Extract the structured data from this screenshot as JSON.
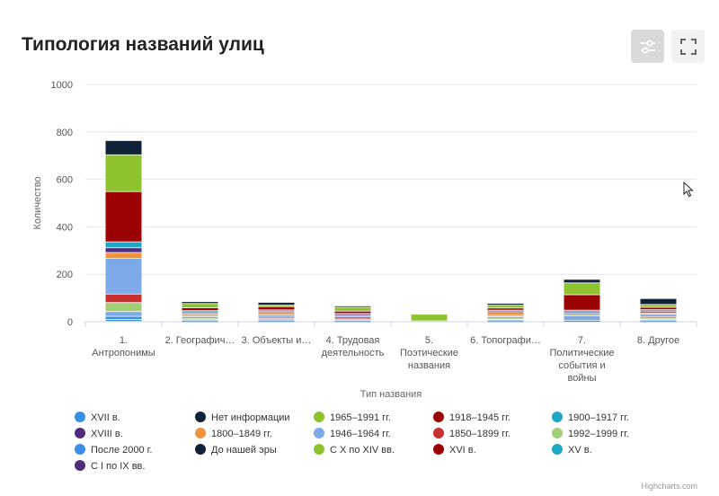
{
  "title": "Типология названий улиц",
  "toolbar": {
    "filter_icon": "sliders-icon",
    "fullscreen_icon": "fullscreen-icon"
  },
  "credit": "Highcharts.com",
  "chart_data": {
    "type": "bar",
    "stacked": true,
    "xlabel": "Тип названия",
    "ylabel": "Количество",
    "ylim": [
      0,
      1000
    ],
    "yticks": [
      0,
      200,
      400,
      600,
      800,
      1000
    ],
    "grid": true,
    "legend_position": "bottom",
    "categories": [
      [
        "1.",
        "Антропонимы"
      ],
      [
        "2. Географич…"
      ],
      [
        "3. Объекты и…"
      ],
      [
        "4. Трудовая",
        "деятельность"
      ],
      [
        "5.",
        "Поэтические",
        "названия"
      ],
      [
        "6. Топографи…"
      ],
      [
        "7.",
        "Политические",
        "события и",
        "войны"
      ],
      [
        "8. Другое"
      ]
    ],
    "series": [
      {
        "name": "XVII в.",
        "color": "#3a8ee6",
        "values": [
          8,
          1,
          1,
          1,
          0,
          1,
          2,
          1
        ]
      },
      {
        "name": "После 2000 г.",
        "color": "#3a8ee6",
        "values": [
          13,
          2,
          2,
          1,
          0,
          2,
          2,
          2
        ]
      },
      {
        "name": "1946–1964 гг.",
        "color": "#7ea9e8",
        "values": [
          20,
          6,
          4,
          3,
          0,
          5,
          20,
          5
        ]
      },
      {
        "name": "1992–1999 гг.",
        "color": "#a3d077",
        "values": [
          38,
          5,
          4,
          5,
          2,
          6,
          5,
          6
        ]
      },
      {
        "name": "1850–1899 гг.",
        "color": "#c8302f",
        "values": [
          36,
          5,
          6,
          8,
          0,
          5,
          3,
          6
        ]
      },
      {
        "name": "1946–1964 гг.",
        "color": "#7ea9e8",
        "values": [
          150,
          7,
          10,
          5,
          0,
          6,
          6,
          10
        ]
      },
      {
        "name": "1800–1849 гг.",
        "color": "#f0913c",
        "values": [
          25,
          8,
          10,
          3,
          0,
          14,
          2,
          6
        ]
      },
      {
        "name": "XVIII в.",
        "color": "#4f2d7a",
        "values": [
          20,
          6,
          6,
          3,
          0,
          4,
          3,
          7
        ]
      },
      {
        "name": "1900–1917 гг.",
        "color": "#1ea7c5",
        "values": [
          25,
          5,
          5,
          4,
          0,
          4,
          4,
          6
        ]
      },
      {
        "name": "1918–1945 гг.",
        "color": "#9b0303",
        "values": [
          212,
          12,
          14,
          10,
          0,
          9,
          65,
          10
        ]
      },
      {
        "name": "1965–1991 гг.",
        "color": "#8ec22f",
        "values": [
          155,
          18,
          6,
          16,
          28,
          12,
          50,
          12
        ]
      },
      {
        "name": "Нет информации",
        "color": "#0f2238",
        "values": [
          60,
          8,
          12,
          6,
          0,
          8,
          15,
          25
        ]
      }
    ],
    "legend": [
      {
        "name": "XVII в.",
        "color": "#3a8ee6"
      },
      {
        "name": "Нет информации",
        "color": "#0f2238"
      },
      {
        "name": "1965–1991 гг.",
        "color": "#8ec22f"
      },
      {
        "name": "1918–1945 гг.",
        "color": "#9b0303"
      },
      {
        "name": "1900–1917 гг.",
        "color": "#1ea7c5"
      },
      {
        "name": "XVIII в.",
        "color": "#4f2d7a"
      },
      {
        "name": "1800–1849 гг.",
        "color": "#f0913c"
      },
      {
        "name": "1946–1964 гг.",
        "color": "#7ea9e8"
      },
      {
        "name": "1850–1899 гг.",
        "color": "#c8302f"
      },
      {
        "name": "1992–1999 гг.",
        "color": "#a3d077"
      },
      {
        "name": "После 2000 г.",
        "color": "#3a8ee6"
      },
      {
        "name": "До нашей эры",
        "color": "#0f2238"
      },
      {
        "name": "С X по XIV вв.",
        "color": "#8ec22f"
      },
      {
        "name": "XVI в.",
        "color": "#9b0303"
      },
      {
        "name": "XV в.",
        "color": "#1ea7c5"
      },
      {
        "name": "С I по IX вв.",
        "color": "#4f2d7a"
      }
    ]
  }
}
